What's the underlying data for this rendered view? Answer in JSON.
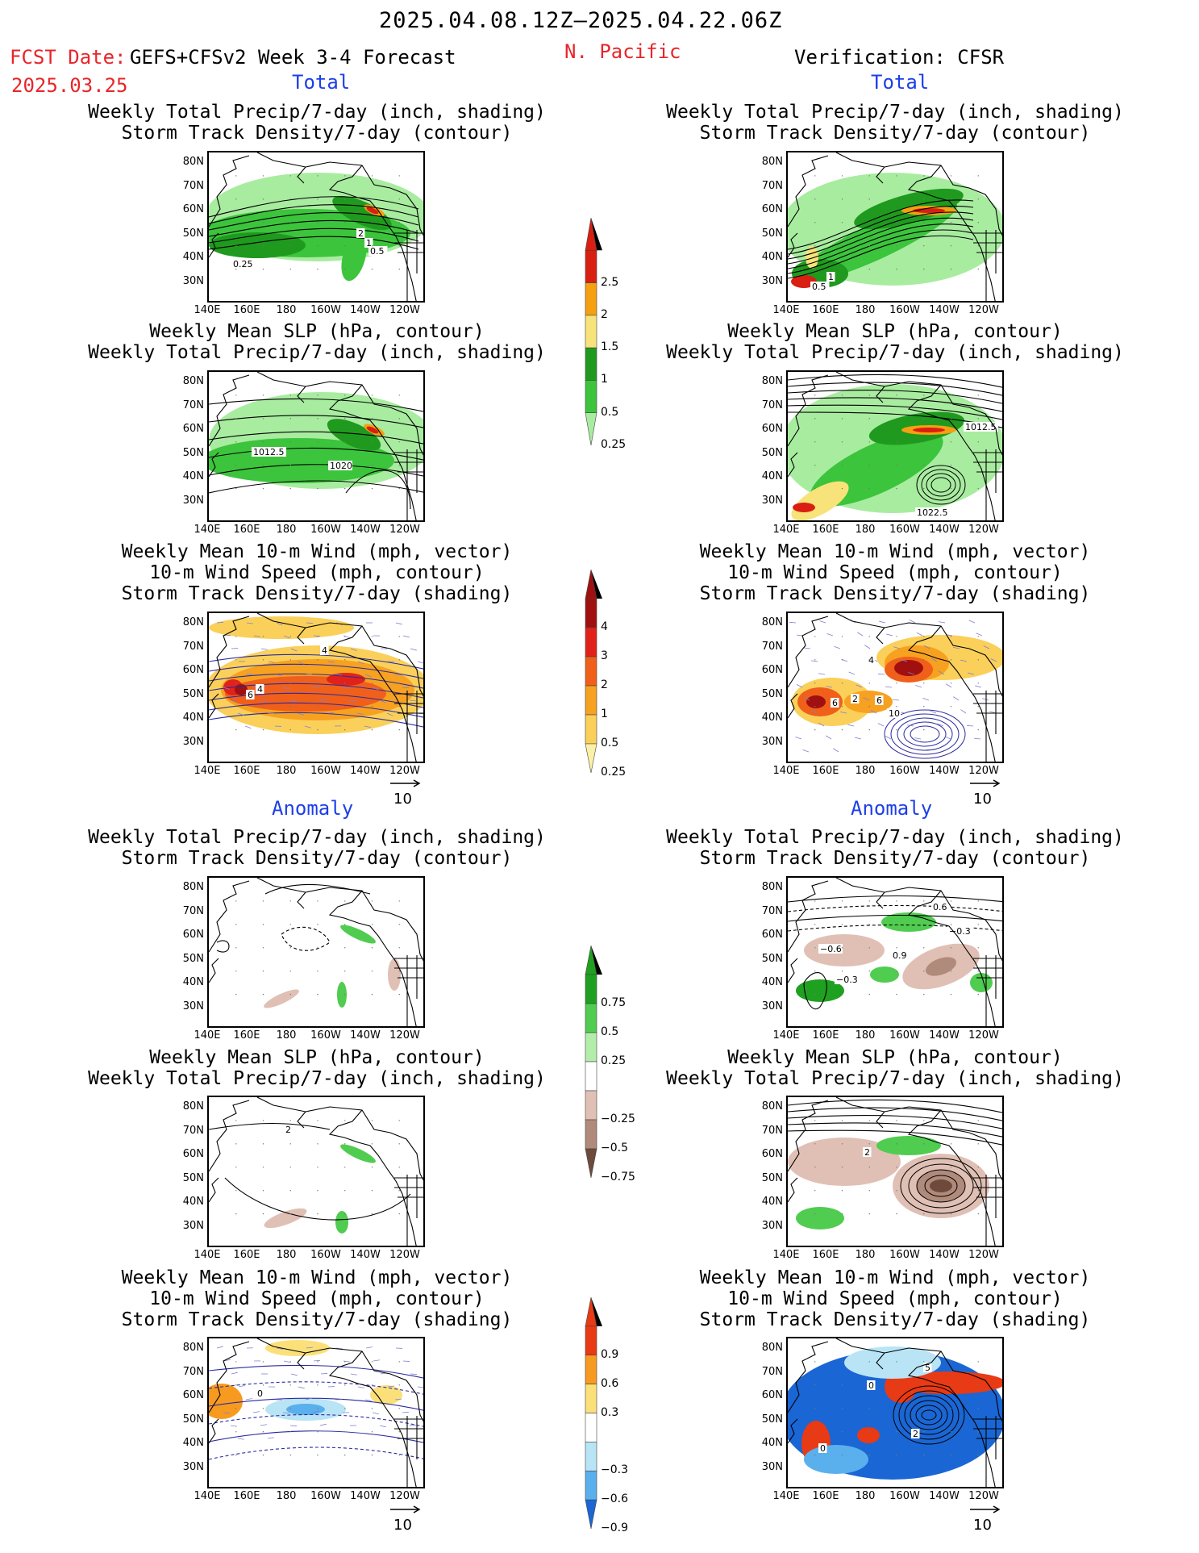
{
  "header": {
    "date_range": "2025.04.08.12Z–2025.04.22.06Z",
    "fcst_date_label": "FCST Date:",
    "fcst_date": "2025.03.25",
    "model": "GEFS+CFSv2 Week 3-4 Forecast",
    "region": "N. Pacific",
    "verification": "Verification: CFSR"
  },
  "sections": {
    "total": "Total",
    "anomaly": "Anomaly"
  },
  "titles": {
    "precip_storm": [
      "Weekly Total Precip/7-day (inch, shading)",
      "Storm Track Density/7-day (contour)"
    ],
    "slp_precip": [
      "Weekly Mean SLP (hPa, contour)",
      "Weekly Total Precip/7-day (inch, shading)"
    ],
    "wind_storm": [
      "Weekly Mean 10-m Wind (mph, vector)",
      "10-m Wind Speed (mph, contour)",
      "Storm Track Density/7-day (shading)"
    ]
  },
  "axes": {
    "lat_ticks": [
      "80N",
      "70N",
      "60N",
      "50N",
      "40N",
      "30N"
    ],
    "lon_ticks": [
      "140E",
      "160E",
      "180",
      "160W",
      "140W",
      "120W"
    ]
  },
  "vector_ref": "10",
  "colorbars": {
    "precip_total": {
      "labels": [
        "2.5",
        "2",
        "1.5",
        "1",
        "0.5",
        "0.25"
      ],
      "colors": [
        "#d81f12",
        "#f5a010",
        "#f7e37a",
        "#1f9a1f",
        "#3cc43c",
        "#a8eca0"
      ]
    },
    "storm_total": {
      "labels": [
        "4",
        "3",
        "2",
        "1",
        "0.5",
        "0.25"
      ],
      "colors": [
        "#a01010",
        "#e0221a",
        "#f0601a",
        "#f7a120",
        "#fad05a",
        "#fbf1a6"
      ]
    },
    "precip_anom": {
      "labels": [
        "0.75",
        "0.5",
        "0.25",
        "−0.25",
        "−0.5",
        "−0.75"
      ],
      "colors": [
        "#20a020",
        "#50cc50",
        "#b2eeaa",
        "#ffffff",
        "#e0c0b5",
        "#b08a7a",
        "#6e4a3c"
      ]
    },
    "storm_anom": {
      "labels": [
        "0.9",
        "0.6",
        "0.3",
        "−0.3",
        "−0.6",
        "−0.9"
      ],
      "colors": [
        "#e83a14",
        "#f79a20",
        "#fbe07a",
        "#ffffff",
        "#b8e4f5",
        "#5ab0ec",
        "#1a66d4"
      ]
    }
  },
  "contour_labels": {
    "p1": [
      "2",
      "1",
      "0.5",
      "0.25"
    ],
    "p2": [
      "1",
      "0.5"
    ],
    "p3": [
      "1012.5",
      "1020"
    ],
    "p4": [
      "1012.5",
      "1022.5"
    ],
    "p5": [
      "4",
      "6",
      "4"
    ],
    "p6": [
      "4",
      "6",
      "2",
      "6",
      "10"
    ],
    "p8": [
      "0.6",
      "−0.3",
      "−0.6",
      "0.9",
      "−0.3"
    ],
    "p9": [
      "2"
    ],
    "p10": [
      "2"
    ],
    "p11": [
      "0"
    ],
    "p12": [
      "5",
      "0",
      "2",
      "0"
    ]
  }
}
